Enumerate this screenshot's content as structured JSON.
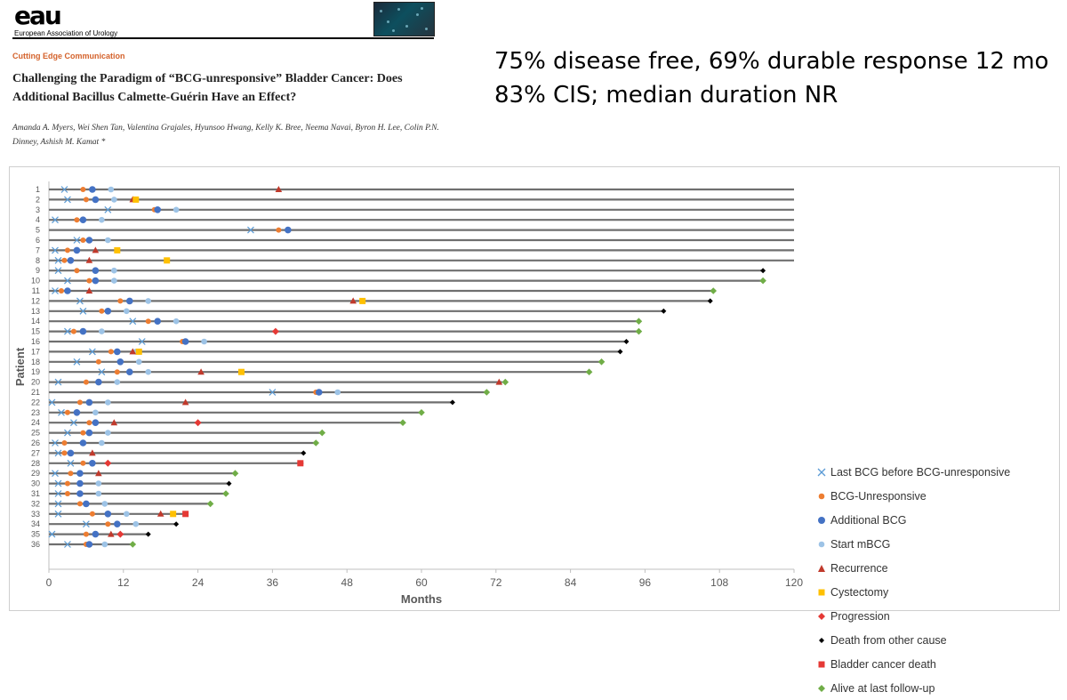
{
  "header": {
    "org_mark": "eau",
    "org_name": "European Association of Urology",
    "section": "Cutting Edge Communication",
    "title": "Challenging the Paradigm of “BCG-unresponsive” Bladder Cancer: Does Additional Bacillus Calmette-Guérin Have an Effect?",
    "authors": "Amanda A. Myers, Wei Shen Tan, Valentina Grajales, Hyunsoo Hwang, Kelly K. Bree, Neema Navai, Byron H. Lee, Colin P.N. Dinney, Ashish M. Kamat *"
  },
  "callouts": {
    "line1": "75% disease free, 69% durable response 12 mo",
    "line2": "83% CIS; median duration NR"
  },
  "colors": {
    "last_bcg": "#5b9bd5",
    "bcg_unresponsive": "#ed7d31",
    "additional_bcg": "#4472c4",
    "start_mbcg": "#9dc3e6",
    "recurrence": "#c0392b",
    "cystectomy": "#ffc000",
    "progression": "#e53935",
    "death_other": "#000000",
    "bladder_cancer_death": "#e53935",
    "alive": "#70ad47",
    "bar": "#6f6f6f"
  },
  "chart_data": {
    "type": "scatter",
    "subtype": "swimmer-plot",
    "xlabel": "Months",
    "ylabel": "Patient",
    "xlim": [
      0,
      120
    ],
    "xticks": [
      0,
      12,
      24,
      36,
      48,
      60,
      72,
      84,
      96,
      108,
      120
    ],
    "legend_position": "right",
    "legend": [
      {
        "key": "last_bcg",
        "label": "Last BCG before BCG-unresponsive",
        "marker": "x"
      },
      {
        "key": "bcg_unresponsive",
        "label": "BCG-Unresponsive",
        "marker": "circle"
      },
      {
        "key": "additional_bcg",
        "label": "Additional BCG",
        "marker": "circle-large"
      },
      {
        "key": "start_mbcg",
        "label": "Start mBCG",
        "marker": "circle"
      },
      {
        "key": "recurrence",
        "label": "Recurrence",
        "marker": "triangle"
      },
      {
        "key": "cystectomy",
        "label": "Cystectomy",
        "marker": "square"
      },
      {
        "key": "progression",
        "label": "Progression",
        "marker": "diamond"
      },
      {
        "key": "death_other",
        "label": "Death from other cause",
        "marker": "diamond-small"
      },
      {
        "key": "bladder_cancer_death",
        "label": "Bladder cancer death",
        "marker": "square"
      },
      {
        "key": "alive",
        "label": "Alive at last follow-up",
        "marker": "diamond"
      }
    ],
    "patients": [
      {
        "id": 1,
        "bar_end": 120,
        "last_bcg": 2.5,
        "bcg_unresponsive": 5.5,
        "additional_bcg": 7,
        "start_mbcg": 10,
        "recurrence": 37
      },
      {
        "id": 2,
        "bar_end": 120,
        "last_bcg": 3,
        "bcg_unresponsive": 6,
        "additional_bcg": 7.5,
        "start_mbcg": 10.5,
        "recurrence": 13.5,
        "cystectomy": 14
      },
      {
        "id": 3,
        "bar_end": 120,
        "last_bcg": 9.5,
        "bcg_unresponsive": 17,
        "additional_bcg": 17.5,
        "start_mbcg": 20.5
      },
      {
        "id": 4,
        "bar_end": 120,
        "last_bcg": 1,
        "bcg_unresponsive": 4.5,
        "additional_bcg": 5.5,
        "start_mbcg": 8.5
      },
      {
        "id": 5,
        "bar_end": 120,
        "last_bcg": 32.5,
        "bcg_unresponsive": 37,
        "additional_bcg": 38.5
      },
      {
        "id": 6,
        "bar_end": 120,
        "last_bcg": 4.5,
        "bcg_unresponsive": 5.5,
        "additional_bcg": 6.5,
        "start_mbcg": 9.5
      },
      {
        "id": 7,
        "bar_end": 120,
        "last_bcg": 1,
        "bcg_unresponsive": 3,
        "additional_bcg": 4.5,
        "recurrence": 7.5,
        "cystectomy": 11
      },
      {
        "id": 8,
        "bar_end": 120,
        "last_bcg": 1.5,
        "bcg_unresponsive": 2.5,
        "additional_bcg": 3.5,
        "recurrence": 6.5,
        "cystectomy": 19
      },
      {
        "id": 9,
        "bar_end": 115,
        "last_bcg": 1.5,
        "bcg_unresponsive": 4.5,
        "additional_bcg": 7.5,
        "start_mbcg": 10.5,
        "death_other": 115
      },
      {
        "id": 10,
        "bar_end": 115,
        "last_bcg": 3,
        "bcg_unresponsive": 6.5,
        "additional_bcg": 7.5,
        "start_mbcg": 10.5,
        "alive": 115
      },
      {
        "id": 11,
        "bar_end": 107,
        "last_bcg": 1,
        "bcg_unresponsive": 2,
        "additional_bcg": 3,
        "recurrence": 6.5,
        "alive": 107
      },
      {
        "id": 12,
        "bar_end": 106.5,
        "last_bcg": 5,
        "bcg_unresponsive": 11.5,
        "additional_bcg": 13,
        "start_mbcg": 16,
        "recurrence": 49,
        "cystectomy": 50.5,
        "death_other": 106.5
      },
      {
        "id": 13,
        "bar_end": 99,
        "last_bcg": 5.5,
        "bcg_unresponsive": 8.5,
        "additional_bcg": 9.5,
        "start_mbcg": 12.5,
        "death_other": 99
      },
      {
        "id": 14,
        "bar_end": 95,
        "last_bcg": 13.5,
        "bcg_unresponsive": 16,
        "additional_bcg": 17.5,
        "start_mbcg": 20.5,
        "alive": 95
      },
      {
        "id": 15,
        "bar_end": 95,
        "last_bcg": 3,
        "bcg_unresponsive": 4,
        "additional_bcg": 5.5,
        "start_mbcg": 8.5,
        "progression": 36.5,
        "alive": 95
      },
      {
        "id": 16,
        "bar_end": 93,
        "last_bcg": 15,
        "bcg_unresponsive": 21.5,
        "additional_bcg": 22,
        "start_mbcg": 25,
        "death_other": 93
      },
      {
        "id": 17,
        "bar_end": 92,
        "last_bcg": 7,
        "bcg_unresponsive": 10,
        "additional_bcg": 11,
        "start_mbcg": 14,
        "recurrence": 13.5,
        "cystectomy": 14.5,
        "death_other": 92
      },
      {
        "id": 18,
        "bar_end": 89,
        "last_bcg": 4.5,
        "bcg_unresponsive": 8,
        "additional_bcg": 11.5,
        "start_mbcg": 14.5,
        "alive": 89
      },
      {
        "id": 19,
        "bar_end": 87,
        "last_bcg": 8.5,
        "bcg_unresponsive": 11,
        "additional_bcg": 13,
        "start_mbcg": 16,
        "recurrence": 24.5,
        "cystectomy": 31,
        "alive": 87
      },
      {
        "id": 20,
        "bar_end": 73,
        "last_bcg": 1.5,
        "bcg_unresponsive": 6,
        "additional_bcg": 8,
        "start_mbcg": 11,
        "recurrence": 72.5,
        "alive": 73.5
      },
      {
        "id": 21,
        "bar_end": 70.5,
        "last_bcg": 36,
        "bcg_unresponsive": 43,
        "additional_bcg": 43.5,
        "start_mbcg": 46.5,
        "alive": 70.5
      },
      {
        "id": 22,
        "bar_end": 65,
        "last_bcg": 0.5,
        "bcg_unresponsive": 5,
        "additional_bcg": 6.5,
        "start_mbcg": 9.5,
        "recurrence": 22,
        "death_other": 65
      },
      {
        "id": 23,
        "bar_end": 60,
        "last_bcg": 2,
        "bcg_unresponsive": 3,
        "additional_bcg": 4.5,
        "start_mbcg": 7.5,
        "alive": 60
      },
      {
        "id": 24,
        "bar_end": 57,
        "last_bcg": 4,
        "bcg_unresponsive": 6.5,
        "additional_bcg": 7.5,
        "recurrence": 10.5,
        "progression": 24,
        "alive": 57
      },
      {
        "id": 25,
        "bar_end": 44,
        "last_bcg": 3,
        "bcg_unresponsive": 5.5,
        "additional_bcg": 6.5,
        "start_mbcg": 9.5,
        "alive": 44
      },
      {
        "id": 26,
        "bar_end": 43,
        "last_bcg": 1,
        "bcg_unresponsive": 2.5,
        "additional_bcg": 5.5,
        "start_mbcg": 8.5,
        "alive": 43
      },
      {
        "id": 27,
        "bar_end": 41,
        "last_bcg": 1.5,
        "bcg_unresponsive": 2.5,
        "additional_bcg": 3.5,
        "recurrence": 7,
        "death_other": 41
      },
      {
        "id": 28,
        "bar_end": 41,
        "last_bcg": 3.5,
        "bcg_unresponsive": 5.5,
        "additional_bcg": 7,
        "progression": 9.5,
        "bladder_cancer_death": 40.5
      },
      {
        "id": 29,
        "bar_end": 30,
        "last_bcg": 1,
        "bcg_unresponsive": 3.5,
        "additional_bcg": 5,
        "recurrence": 8,
        "alive": 30
      },
      {
        "id": 30,
        "bar_end": 29,
        "last_bcg": 1.5,
        "bcg_unresponsive": 3,
        "additional_bcg": 5,
        "start_mbcg": 8,
        "death_other": 29
      },
      {
        "id": 31,
        "bar_end": 28.5,
        "last_bcg": 1.5,
        "bcg_unresponsive": 3,
        "additional_bcg": 5,
        "start_mbcg": 8,
        "alive": 28.5
      },
      {
        "id": 32,
        "bar_end": 26,
        "last_bcg": 1.5,
        "bcg_unresponsive": 5,
        "additional_bcg": 6,
        "start_mbcg": 9,
        "alive": 26
      },
      {
        "id": 33,
        "bar_end": 22,
        "last_bcg": 1.5,
        "bcg_unresponsive": 7,
        "additional_bcg": 9.5,
        "start_mbcg": 12.5,
        "recurrence": 18,
        "cystectomy": 20,
        "bladder_cancer_death": 22
      },
      {
        "id": 34,
        "bar_end": 20.5,
        "last_bcg": 6,
        "bcg_unresponsive": 9.5,
        "additional_bcg": 11,
        "start_mbcg": 14,
        "death_other": 20.5
      },
      {
        "id": 35,
        "bar_end": 16,
        "last_bcg": 0.5,
        "bcg_unresponsive": 6,
        "additional_bcg": 7.5,
        "recurrence": 10,
        "progression": 11.5,
        "death_other": 16
      },
      {
        "id": 36,
        "bar_end": 13.5,
        "last_bcg": 3,
        "bcg_unresponsive": 6,
        "additional_bcg": 6.5,
        "start_mbcg": 9,
        "alive": 13.5
      }
    ]
  }
}
